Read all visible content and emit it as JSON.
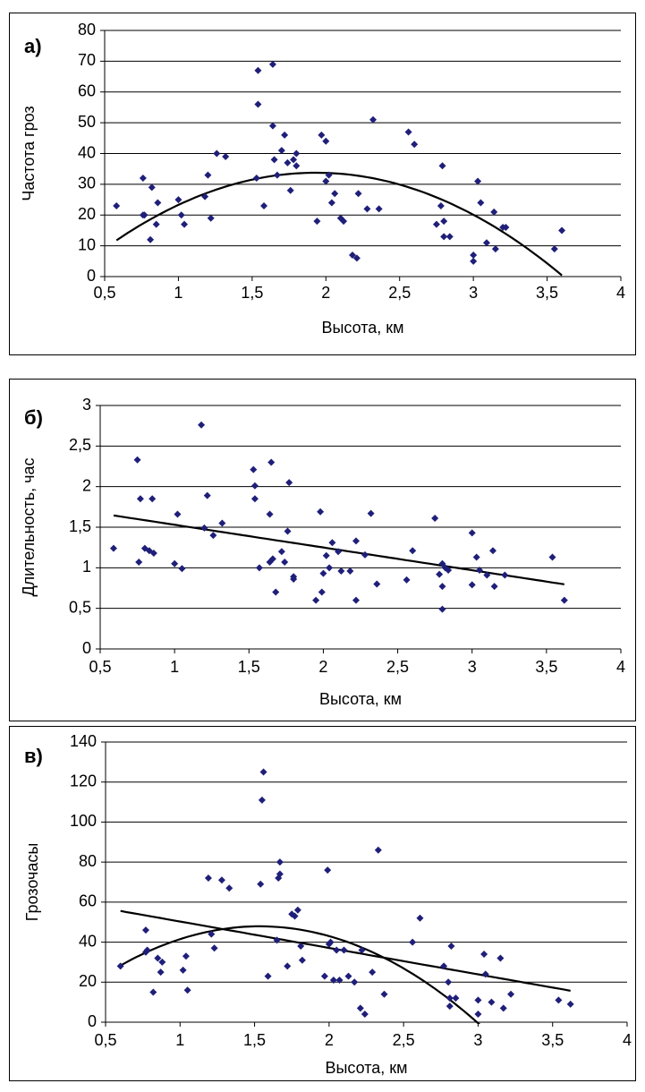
{
  "chart_data": [
    {
      "type": "scatter",
      "panel_label": "а)",
      "xlabel": "Высота, км",
      "ylabel": "Частота гроз",
      "xlim": [
        0.5,
        4
      ],
      "ylim": [
        0,
        80
      ],
      "xticks": [
        "0,5",
        "1",
        "1,5",
        "2",
        "2,5",
        "3",
        "3,5",
        "4"
      ],
      "yticks": [
        "0",
        "10",
        "20",
        "30",
        "40",
        "50",
        "60",
        "70",
        "80"
      ],
      "grid": "horizontal",
      "marker_color": "#1F1F7A",
      "points": [
        [
          0.58,
          23
        ],
        [
          0.76,
          32
        ],
        [
          0.76,
          20
        ],
        [
          0.77,
          20
        ],
        [
          0.81,
          12
        ],
        [
          0.82,
          29
        ],
        [
          0.85,
          17
        ],
        [
          0.86,
          24
        ],
        [
          1.0,
          25
        ],
        [
          1.02,
          20
        ],
        [
          1.04,
          17
        ],
        [
          1.18,
          26
        ],
        [
          1.2,
          33
        ],
        [
          1.22,
          19
        ],
        [
          1.26,
          40
        ],
        [
          1.32,
          39
        ],
        [
          1.53,
          32
        ],
        [
          1.54,
          67
        ],
        [
          1.54,
          56
        ],
        [
          1.58,
          23
        ],
        [
          1.64,
          69
        ],
        [
          1.64,
          49
        ],
        [
          1.65,
          38
        ],
        [
          1.67,
          33
        ],
        [
          1.7,
          41
        ],
        [
          1.72,
          46
        ],
        [
          1.74,
          37
        ],
        [
          1.76,
          28
        ],
        [
          1.78,
          38
        ],
        [
          1.8,
          36
        ],
        [
          1.8,
          40
        ],
        [
          1.94,
          18
        ],
        [
          1.97,
          46
        ],
        [
          2.0,
          44
        ],
        [
          2.0,
          31
        ],
        [
          2.02,
          33
        ],
        [
          2.04,
          24
        ],
        [
          2.06,
          27
        ],
        [
          2.1,
          19
        ],
        [
          2.12,
          18
        ],
        [
          2.18,
          7
        ],
        [
          2.21,
          6
        ],
        [
          2.22,
          27
        ],
        [
          2.28,
          22
        ],
        [
          2.32,
          51
        ],
        [
          2.36,
          22
        ],
        [
          2.56,
          47
        ],
        [
          2.6,
          43
        ],
        [
          2.75,
          17
        ],
        [
          2.78,
          23
        ],
        [
          2.79,
          36
        ],
        [
          2.8,
          13
        ],
        [
          2.8,
          18
        ],
        [
          2.84,
          13
        ],
        [
          3.0,
          7
        ],
        [
          3.0,
          5
        ],
        [
          3.03,
          31
        ],
        [
          3.05,
          24
        ],
        [
          3.09,
          11
        ],
        [
          3.14,
          21
        ],
        [
          3.15,
          9
        ],
        [
          3.2,
          16
        ],
        [
          3.22,
          16
        ],
        [
          3.55,
          9
        ],
        [
          3.6,
          15
        ]
      ],
      "trendlines": [
        {
          "kind": "polynomial-2",
          "coefficients": [
            -11.1,
            46.4,
            -12.0
          ]
        }
      ]
    },
    {
      "type": "scatter",
      "panel_label": "б)",
      "xlabel": "Высота, км",
      "ylabel": "Длительность, час",
      "xlim": [
        0.5,
        4
      ],
      "ylim": [
        0,
        3
      ],
      "xticks": [
        "0,5",
        "1",
        "1,5",
        "2",
        "2,5",
        "3",
        "3,5",
        "4"
      ],
      "yticks": [
        "0",
        "0,5",
        "1",
        "1,5",
        "2",
        "2,5",
        "3"
      ],
      "grid": "horizontal",
      "marker_color": "#1F1F7A",
      "points": [
        [
          0.59,
          1.24
        ],
        [
          0.75,
          2.33
        ],
        [
          0.76,
          1.07
        ],
        [
          0.77,
          1.85
        ],
        [
          0.8,
          1.24
        ],
        [
          0.83,
          1.21
        ],
        [
          0.85,
          1.85
        ],
        [
          0.86,
          1.18
        ],
        [
          1.0,
          1.05
        ],
        [
          1.02,
          1.66
        ],
        [
          1.05,
          0.99
        ],
        [
          1.18,
          2.76
        ],
        [
          1.2,
          1.49
        ],
        [
          1.22,
          1.89
        ],
        [
          1.26,
          1.4
        ],
        [
          1.32,
          1.55
        ],
        [
          1.53,
          2.21
        ],
        [
          1.54,
          2.01
        ],
        [
          1.54,
          1.85
        ],
        [
          1.57,
          1.0
        ],
        [
          1.64,
          1.66
        ],
        [
          1.64,
          1.07
        ],
        [
          1.65,
          2.3
        ],
        [
          1.66,
          1.11
        ],
        [
          1.68,
          0.7
        ],
        [
          1.72,
          1.2
        ],
        [
          1.74,
          1.07
        ],
        [
          1.76,
          1.45
        ],
        [
          1.77,
          2.05
        ],
        [
          1.8,
          0.89
        ],
        [
          1.8,
          0.86
        ],
        [
          1.95,
          0.6
        ],
        [
          1.98,
          1.69
        ],
        [
          1.99,
          0.7
        ],
        [
          2.0,
          0.93
        ],
        [
          2.02,
          1.15
        ],
        [
          2.04,
          1.0
        ],
        [
          2.06,
          1.31
        ],
        [
          2.1,
          1.2
        ],
        [
          2.12,
          0.96
        ],
        [
          2.18,
          0.96
        ],
        [
          2.22,
          0.6
        ],
        [
          2.22,
          1.33
        ],
        [
          2.28,
          1.16
        ],
        [
          2.32,
          1.67
        ],
        [
          2.36,
          0.8
        ],
        [
          2.56,
          0.85
        ],
        [
          2.6,
          1.21
        ],
        [
          2.75,
          1.61
        ],
        [
          2.78,
          0.92
        ],
        [
          2.8,
          1.05
        ],
        [
          2.8,
          0.77
        ],
        [
          2.8,
          0.49
        ],
        [
          2.82,
          1.0
        ],
        [
          2.84,
          0.97
        ],
        [
          3.0,
          0.79
        ],
        [
          3.0,
          1.43
        ],
        [
          3.03,
          1.13
        ],
        [
          3.05,
          0.97
        ],
        [
          3.1,
          0.91
        ],
        [
          3.14,
          1.21
        ],
        [
          3.15,
          0.77
        ],
        [
          3.22,
          0.91
        ],
        [
          3.54,
          1.13
        ],
        [
          3.62,
          0.6
        ]
      ],
      "trendlines": [
        {
          "kind": "linear",
          "coefficients": [
            1.81,
            -0.28
          ]
        }
      ]
    },
    {
      "type": "scatter",
      "panel_label": "в)",
      "xlabel": "Высота, км",
      "ylabel": "Грозочасы",
      "xlim": [
        0.5,
        4
      ],
      "ylim": [
        0,
        140
      ],
      "xticks": [
        "0,5",
        "1",
        "1,5",
        "2",
        "2,5",
        "3",
        "3,5",
        "4"
      ],
      "yticks": [
        "0",
        "20",
        "40",
        "60",
        "80",
        "100",
        "120",
        "140"
      ],
      "grid": "horizontal",
      "marker_color": "#1F1F7A",
      "points": [
        [
          0.6,
          28
        ],
        [
          0.77,
          35
        ],
        [
          0.77,
          46
        ],
        [
          0.78,
          36
        ],
        [
          0.82,
          15
        ],
        [
          0.85,
          32
        ],
        [
          0.87,
          25
        ],
        [
          0.88,
          30
        ],
        [
          1.02,
          26
        ],
        [
          1.04,
          33
        ],
        [
          1.05,
          16
        ],
        [
          1.19,
          72
        ],
        [
          1.21,
          44
        ],
        [
          1.23,
          37
        ],
        [
          1.28,
          71
        ],
        [
          1.33,
          67
        ],
        [
          1.54,
          69
        ],
        [
          1.55,
          111
        ],
        [
          1.56,
          125
        ],
        [
          1.59,
          23
        ],
        [
          1.65,
          41
        ],
        [
          1.66,
          72
        ],
        [
          1.67,
          74
        ],
        [
          1.67,
          80
        ],
        [
          1.72,
          28
        ],
        [
          1.75,
          54
        ],
        [
          1.77,
          53
        ],
        [
          1.79,
          56
        ],
        [
          1.81,
          38
        ],
        [
          1.82,
          31
        ],
        [
          1.97,
          23
        ],
        [
          1.99,
          76
        ],
        [
          2.0,
          39
        ],
        [
          2.01,
          40
        ],
        [
          2.03,
          21
        ],
        [
          2.05,
          36
        ],
        [
          2.07,
          21
        ],
        [
          2.1,
          36
        ],
        [
          2.13,
          23
        ],
        [
          2.17,
          20
        ],
        [
          2.21,
          7
        ],
        [
          2.22,
          36
        ],
        [
          2.24,
          4
        ],
        [
          2.29,
          25
        ],
        [
          2.33,
          86
        ],
        [
          2.37,
          14
        ],
        [
          2.56,
          40
        ],
        [
          2.61,
          52
        ],
        [
          2.77,
          28
        ],
        [
          2.8,
          20
        ],
        [
          2.81,
          12
        ],
        [
          2.81,
          8
        ],
        [
          2.82,
          38
        ],
        [
          2.85,
          12
        ],
        [
          3.0,
          11
        ],
        [
          3.0,
          4
        ],
        [
          3.04,
          34
        ],
        [
          3.05,
          24
        ],
        [
          3.09,
          10
        ],
        [
          3.15,
          32
        ],
        [
          3.17,
          7
        ],
        [
          3.22,
          14
        ],
        [
          3.54,
          11
        ],
        [
          3.62,
          9
        ]
      ],
      "trendlines": [
        {
          "kind": "linear",
          "coefficients": [
            63.5,
            -13.2
          ]
        },
        {
          "kind": "polynomial-2",
          "coefficients": [
            -5.0,
            69.0,
            -22.5
          ]
        }
      ]
    }
  ]
}
